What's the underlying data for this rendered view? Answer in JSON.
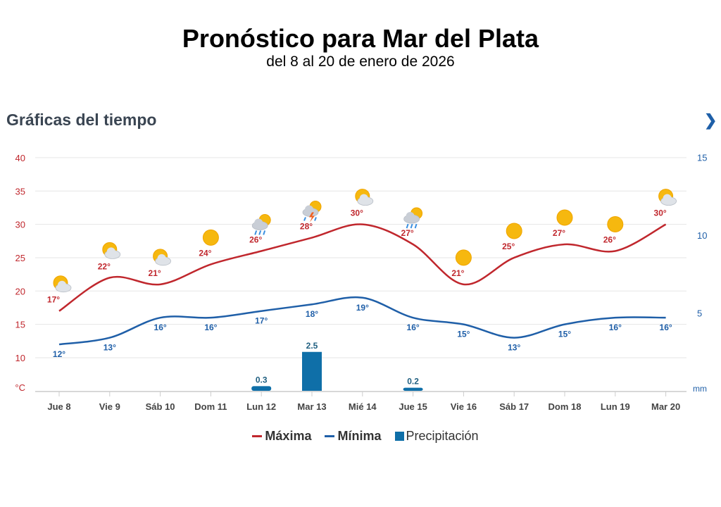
{
  "title": "Pronóstico para Mar del Plata",
  "subtitle": "del 8 al 20 de enero de 2026",
  "section_title": "Gráficas del tiempo",
  "next_icon": "chevron-right-icon",
  "chart_data": {
    "type": "line",
    "categories": [
      "Jue 8",
      "Vie 9",
      "Sáb 10",
      "Dom 11",
      "Lun 12",
      "Mar 13",
      "Mié 14",
      "Jue 15",
      "Vie 16",
      "Sáb 17",
      "Dom 18",
      "Lun 19",
      "Mar 20"
    ],
    "icons": [
      "partly-cloudy",
      "partly-cloudy",
      "partly-cloudy",
      "sun",
      "rain",
      "thunderstorm",
      "partly-cloudy",
      "rain",
      "sun",
      "sun",
      "sun",
      "sun",
      "partly-cloudy"
    ],
    "series": [
      {
        "name": "Máxima",
        "type": "line",
        "axis": "left",
        "color": "#c0272d",
        "values": [
          17,
          22,
          21,
          24,
          26,
          28,
          30,
          27,
          21,
          25,
          27,
          26,
          30
        ]
      },
      {
        "name": "Mínima",
        "type": "line",
        "axis": "left",
        "color": "#1f5fa8",
        "values": [
          12,
          13,
          16,
          16,
          17,
          18,
          19,
          16,
          15,
          13,
          15,
          16,
          16
        ]
      },
      {
        "name": "Precipitación",
        "type": "bar",
        "axis": "right",
        "color": "#0f6fa8",
        "values": [
          0,
          0,
          0,
          0,
          0.3,
          2.5,
          0,
          0.2,
          0,
          0,
          0,
          0,
          0
        ]
      }
    ],
    "left_axis": {
      "unit": "°C",
      "ticks": [
        10,
        15,
        20,
        25,
        30,
        35,
        40
      ],
      "range": [
        5,
        40
      ],
      "color": "#c0272d"
    },
    "right_axis": {
      "unit": "mm",
      "ticks": [
        5,
        10,
        15
      ],
      "range": [
        0,
        15
      ],
      "color": "#1f5fa8"
    },
    "grid": true,
    "legend": "bottom"
  }
}
